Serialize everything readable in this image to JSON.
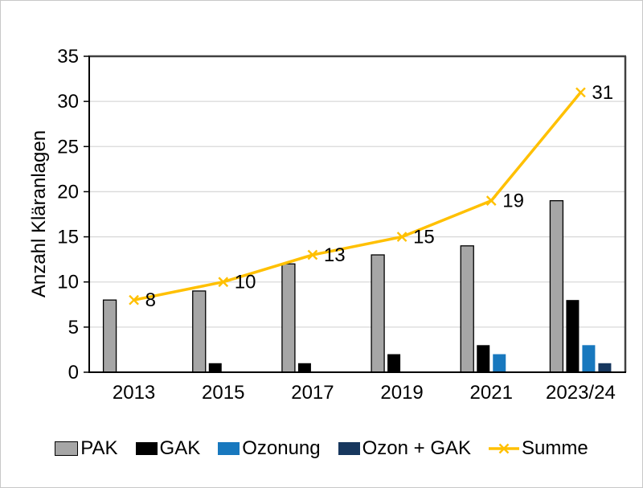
{
  "figure": {
    "background": "#FFFFFF",
    "border_color": "#C8C8C8"
  },
  "chart_data": {
    "type": "bar",
    "title": "",
    "xlabel": "",
    "ylabel": "Anzahl Kläranlagen",
    "categories": [
      "2013",
      "2015",
      "2017",
      "2019",
      "2021",
      "2023/24"
    ],
    "series": [
      {
        "name": "PAK",
        "type": "bar",
        "color": "#A6A6A6",
        "border_color": "#000000",
        "values": [
          8,
          9,
          12,
          13,
          14,
          19
        ]
      },
      {
        "name": "GAK",
        "type": "bar",
        "color": "#000000",
        "values": [
          0,
          1,
          1,
          2,
          3,
          8
        ]
      },
      {
        "name": "Ozonung",
        "type": "bar",
        "color": "#1878BE",
        "values": [
          0,
          0,
          0,
          0,
          2,
          3
        ]
      },
      {
        "name": "Ozon + GAK",
        "type": "bar",
        "color": "#17375E",
        "values": [
          0,
          0,
          0,
          0,
          0,
          1
        ]
      },
      {
        "name": "Summe",
        "type": "line",
        "color": "#FFC000",
        "marker": "x",
        "values": [
          8,
          10,
          13,
          15,
          19,
          31
        ],
        "data_labels": [
          "8",
          "10",
          "13",
          "15",
          "19",
          "31"
        ]
      }
    ],
    "ylim": [
      0,
      35
    ],
    "yticks": [
      0,
      5,
      10,
      15,
      20,
      25,
      30,
      35
    ],
    "grid": true,
    "legend_position": "bottom",
    "style": {
      "grid_color": "#D9D9D9",
      "axis_color": "#000000",
      "frame_color": "#404040",
      "text_color": "#000000"
    }
  }
}
